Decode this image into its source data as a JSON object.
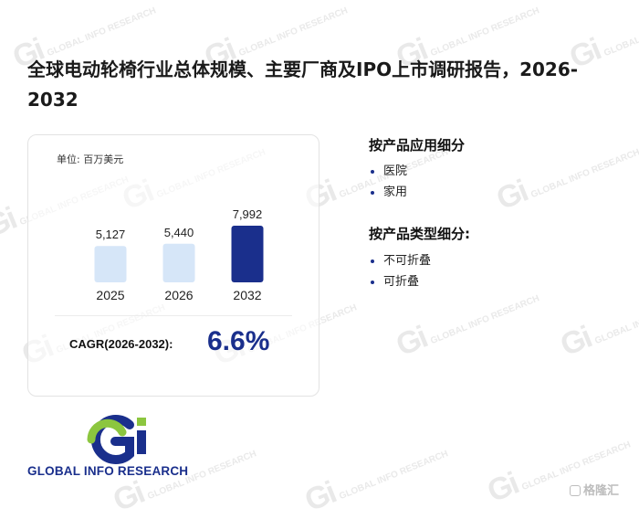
{
  "title": "全球电动轮椅行业总体规模、主要厂商及IPO上市调研报告，2026-2032",
  "unit_label": "单位: 百万美元",
  "chart_data": {
    "type": "bar",
    "categories": [
      "2025",
      "2026",
      "2032"
    ],
    "values": [
      5127,
      5440,
      7992
    ],
    "value_labels": [
      "5,127",
      "5,440",
      "7,992"
    ],
    "bar_colors": [
      "#d6e6f8",
      "#d6e6f8",
      "#1a2f8c"
    ],
    "title": "",
    "ylabel": "",
    "ylim": [
      0,
      7992
    ]
  },
  "cagr": {
    "label": "CAGR(2026-2032):",
    "value": "6.6%"
  },
  "segments": [
    {
      "heading": "按产品应用细分",
      "items": [
        "医院",
        "家用"
      ]
    },
    {
      "heading": "按产品类型细分:",
      "items": [
        "不可折叠",
        "可折叠"
      ]
    }
  ],
  "logo": {
    "mark": "Gi",
    "text": "GLOBAL INFO RESEARCH"
  },
  "watermark": {
    "mark": "Gi",
    "text": "GLOBAL INFO RESEARCH"
  },
  "corner_brand": "格隆汇",
  "colors": {
    "accent": "#1a2f8c",
    "bar_light": "#d6e6f8",
    "logo_green": "#8cc63f",
    "logo_blue": "#1a2f8c"
  }
}
